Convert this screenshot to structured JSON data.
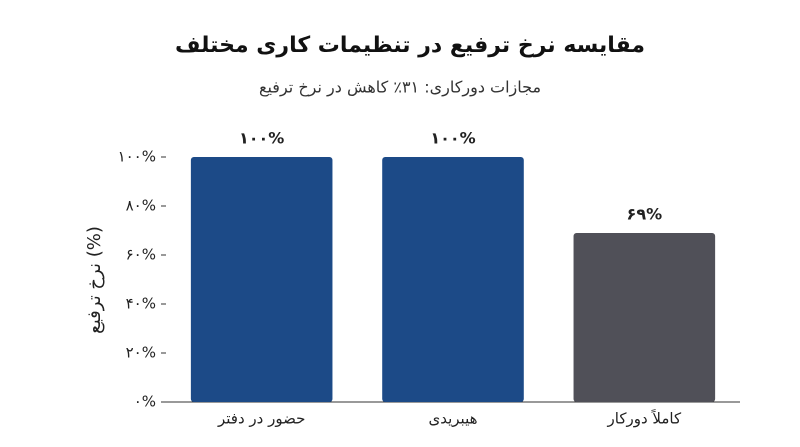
{
  "chart_data": {
    "type": "bar",
    "title": "مقایسه نرخ ترفیع در تنظیمات کاری مختلف",
    "subtitle": "مجازات دورکاری: ۳۱٪ کاهش در نرخ ترفیع",
    "y_label": "نرخ ترفیع (%)",
    "categories": [
      "حضور در دفتر",
      "هیبریدی",
      "کاملاً دورکار"
    ],
    "values": [
      100,
      100,
      69
    ],
    "value_labels": [
      "۱۰۰%",
      "۱۰۰%",
      "۶۹%"
    ],
    "colors": [
      "#1c4a87",
      "#1c4a87",
      "#505058"
    ],
    "ylim": [
      0,
      100
    ],
    "yticks": [
      {
        "value": 0,
        "label": "۰%"
      },
      {
        "value": 20,
        "label": "۲۰%"
      },
      {
        "value": 40,
        "label": "۴۰%"
      },
      {
        "value": 60,
        "label": "۶۰%"
      },
      {
        "value": 80,
        "label": "۸۰%"
      },
      {
        "value": 100,
        "label": "۱۰۰%"
      }
    ],
    "grid": false
  }
}
